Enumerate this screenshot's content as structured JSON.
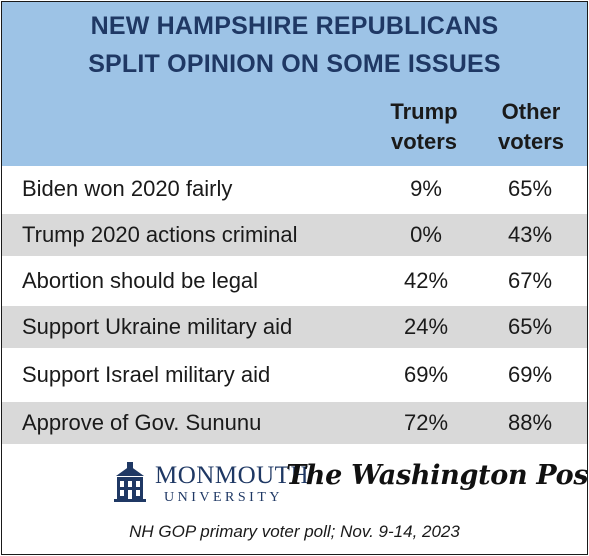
{
  "chart_data": {
    "type": "table",
    "title_lines": [
      "NEW HAMPSHIRE REPUBLICANS",
      "SPLIT OPINION ON SOME ISSUES"
    ],
    "columns": [
      {
        "lines": [
          "Trump",
          "voters"
        ]
      },
      {
        "lines": [
          "Other",
          "voters"
        ]
      }
    ],
    "rows": [
      {
        "label": "Biden won 2020 fairly",
        "values": [
          "9%",
          "65%"
        ]
      },
      {
        "label": "Trump 2020 actions criminal",
        "values": [
          "0%",
          "43%"
        ]
      },
      {
        "label": "Abortion should be legal",
        "values": [
          "42%",
          "67%"
        ]
      },
      {
        "label": "Support Ukraine military aid",
        "values": [
          "24%",
          "65%"
        ]
      },
      {
        "label": "Support Israel military aid",
        "values": [
          "69%",
          "69%"
        ]
      },
      {
        "label": "Approve of Gov. Sununu",
        "values": [
          "72%",
          "88%"
        ]
      }
    ],
    "header_color": "#9dc3e6",
    "title_color": "#1f3864",
    "shade_color": "#d9d9d9"
  },
  "logos": {
    "monmouth_name": "MONMOUTH",
    "monmouth_sub": "UNIVERSITY",
    "monmouth_icon": "building-icon",
    "wapo": "The Washington Post"
  },
  "footnote": "NH GOP primary voter poll;  Nov. 9-14, 2023"
}
